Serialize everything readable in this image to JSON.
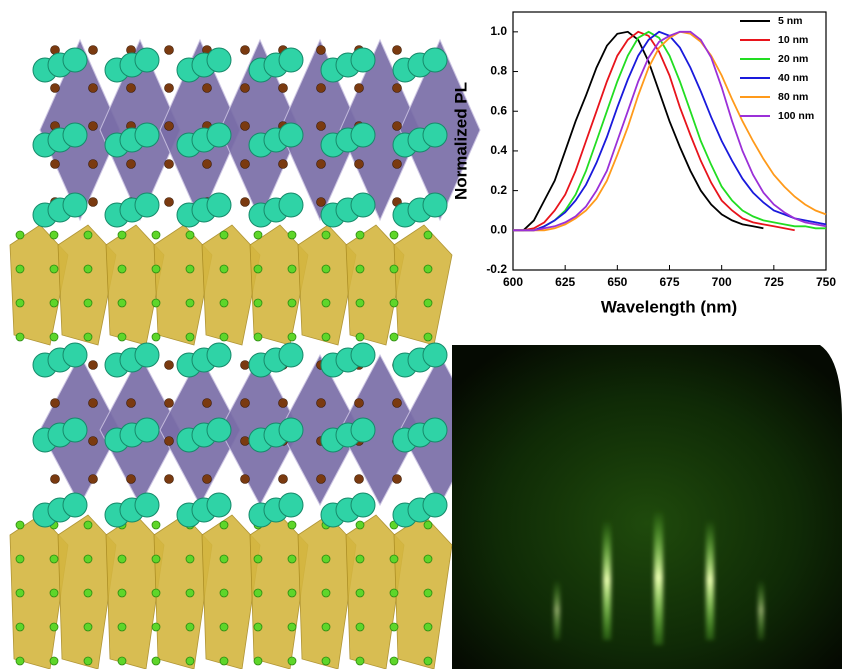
{
  "chart_data": {
    "type": "line",
    "x_label": "Wavelength (nm)",
    "y_label": "Normalized PL",
    "x": [
      600,
      605,
      610,
      615,
      620,
      625,
      630,
      635,
      640,
      645,
      650,
      655,
      660,
      665,
      670,
      675,
      680,
      685,
      690,
      695,
      700,
      705,
      710,
      715,
      720,
      725,
      730,
      735,
      740,
      745,
      750
    ],
    "xlim": [
      600,
      750
    ],
    "xticks": [
      600,
      625,
      650,
      675,
      700,
      725,
      750
    ],
    "ylim": [
      -0.2,
      1.1
    ],
    "yticks": [
      -0.2,
      {
        "value": 0,
        "label": "0.0"
      },
      0.2,
      0.4,
      0.6,
      0.8,
      {
        "value": 1,
        "label": "1.0"
      }
    ],
    "legend": "top-right",
    "series": [
      {
        "name": "5 nm",
        "color": "#000000",
        "values": [
          0,
          0,
          0.05,
          0.15,
          0.25,
          0.4,
          0.55,
          0.68,
          0.82,
          0.93,
          0.99,
          1.0,
          0.96,
          0.85,
          0.7,
          0.55,
          0.42,
          0.3,
          0.2,
          0.13,
          0.08,
          0.05,
          0.03,
          0.02,
          0.01,
          null,
          null,
          null,
          null,
          null,
          null
        ]
      },
      {
        "name": "10 nm",
        "color": "#e8141c",
        "values": [
          0,
          0,
          0.01,
          0.04,
          0.1,
          0.18,
          0.3,
          0.45,
          0.6,
          0.75,
          0.88,
          0.96,
          1.0,
          0.98,
          0.9,
          0.78,
          0.62,
          0.48,
          0.35,
          0.24,
          0.15,
          0.1,
          0.06,
          0.04,
          0.03,
          0.02,
          0.01,
          0,
          null,
          null,
          null
        ]
      },
      {
        "name": "20 nm",
        "color": "#22dd22",
        "values": [
          0,
          0,
          0,
          0.02,
          0.05,
          0.1,
          0.18,
          0.3,
          0.45,
          0.6,
          0.75,
          0.88,
          0.97,
          1.0,
          0.97,
          0.88,
          0.75,
          0.6,
          0.45,
          0.33,
          0.22,
          0.15,
          0.1,
          0.07,
          0.05,
          0.04,
          0.03,
          0.02,
          0.02,
          0.01,
          0.01
        ]
      },
      {
        "name": "40 nm",
        "color": "#1a1adc",
        "values": [
          0,
          0,
          0,
          0.02,
          0.05,
          0.09,
          0.15,
          0.23,
          0.34,
          0.47,
          0.62,
          0.76,
          0.88,
          0.96,
          1.0,
          0.98,
          0.92,
          0.82,
          0.7,
          0.57,
          0.45,
          0.35,
          0.26,
          0.19,
          0.14,
          0.1,
          0.08,
          0.06,
          0.05,
          0.04,
          0.03
        ]
      },
      {
        "name": "80 nm",
        "color": "#ff9a1a",
        "values": [
          0,
          0,
          0,
          0,
          0.01,
          0.03,
          0.06,
          0.1,
          0.16,
          0.25,
          0.38,
          0.52,
          0.68,
          0.82,
          0.92,
          0.97,
          1.0,
          0.99,
          0.95,
          0.88,
          0.78,
          0.66,
          0.55,
          0.45,
          0.36,
          0.28,
          0.22,
          0.17,
          0.13,
          0.1,
          0.08
        ]
      },
      {
        "name": "100 nm",
        "color": "#9b30d8",
        "values": [
          0,
          0,
          0,
          0.01,
          0.02,
          0.04,
          0.07,
          0.12,
          0.2,
          0.3,
          0.45,
          0.6,
          0.75,
          0.87,
          0.95,
          0.98,
          1.0,
          1.0,
          0.96,
          0.87,
          0.72,
          0.55,
          0.4,
          0.28,
          0.19,
          0.13,
          0.09,
          0.06,
          0.04,
          0.03,
          0.02
        ]
      }
    ]
  }
}
